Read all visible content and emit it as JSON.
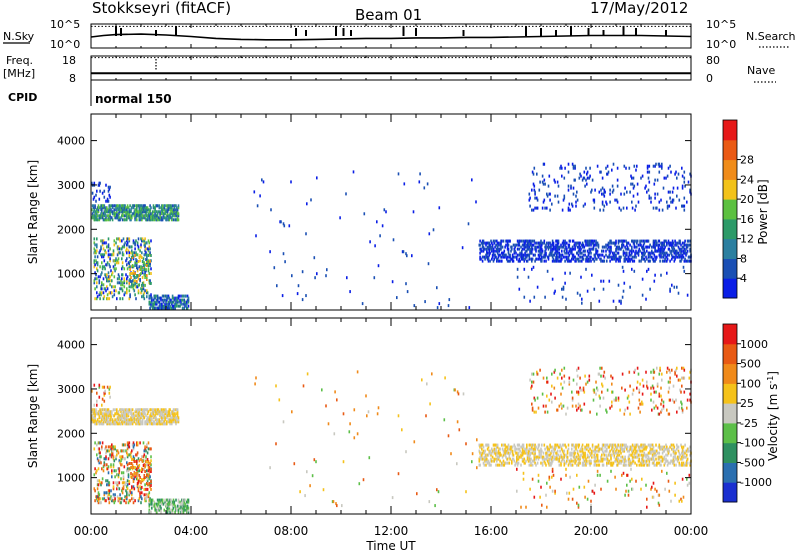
{
  "header": {
    "title": "Stokkseyri (fitACF)",
    "beam": "Beam 01",
    "date": "17/May/2012"
  },
  "chart_data": [
    {
      "type": "line",
      "panel": "noise",
      "labels": {
        "left": "N.Sky",
        "right": "N.Search"
      },
      "left_ticks": [
        "10^5",
        "10^0"
      ],
      "right_ticks": [
        "10^5",
        "10^0"
      ],
      "x_range": [
        0,
        24
      ],
      "series": [
        {
          "name": "N.Sky",
          "style": "solid",
          "x": [
            0.0,
            0.5,
            1.0,
            2.0,
            3.0,
            4.0,
            5.0,
            6.0,
            7.0,
            8.0,
            9.0,
            10.0,
            11.0,
            12.0,
            13.0,
            14.0,
            15.0,
            16.0,
            17.0,
            18.0,
            19.0,
            20.0,
            21.0,
            22.0,
            23.0,
            24.0
          ],
          "y": [
            2.3,
            2.6,
            2.8,
            2.9,
            2.7,
            2.4,
            2.0,
            1.8,
            1.7,
            1.7,
            1.8,
            1.9,
            2.0,
            2.0,
            2.1,
            2.1,
            2.2,
            2.2,
            2.3,
            2.4,
            2.5,
            2.6,
            2.6,
            2.6,
            2.5,
            2.4
          ]
        },
        {
          "name": "N.Search",
          "style": "dotted",
          "x": [
            0,
            24
          ],
          "y": [
            4.5,
            4.5
          ]
        }
      ],
      "spikes_hours": [
        1.0,
        1.2,
        2.6,
        3.4,
        8.2,
        8.6,
        9.8,
        10.1,
        10.4,
        12.5,
        13.0,
        14.9,
        17.4,
        18.0,
        18.6,
        19.2,
        19.9,
        20.5,
        21.3,
        21.8,
        23.0
      ]
    },
    {
      "type": "line",
      "panel": "freq-nave",
      "labels": {
        "left": "Freq.",
        "left_unit": "[MHz]",
        "right": "Nave"
      },
      "left_ticks": [
        "18",
        "8"
      ],
      "right_ticks": [
        "80",
        "0"
      ],
      "x_range": [
        0,
        24
      ],
      "series": [
        {
          "name": "Freq.",
          "style": "solid",
          "x": [
            0,
            24
          ],
          "y": [
            10,
            10
          ]
        },
        {
          "name": "Nave",
          "style": "dotted",
          "x": [
            0,
            24
          ],
          "y": [
            78,
            78
          ]
        }
      ]
    },
    {
      "type": "table",
      "panel": "cpid",
      "label": "CPID",
      "segments": [
        {
          "start_hour": 0,
          "text": "normal 150"
        }
      ]
    },
    {
      "type": "heatmap",
      "panel": "power",
      "ylabel": "Slant Range [km]",
      "y_ticks": [
        1000,
        2000,
        3000,
        4000
      ],
      "ylim": [
        180,
        4600
      ],
      "x_range": [
        0,
        24
      ],
      "colorbar": {
        "label": "Power [dB]",
        "ticks": [
          "4",
          "8",
          "12",
          "16",
          "20",
          "24",
          "28"
        ],
        "colors": [
          "#0a1ee6",
          "#1a4fb4",
          "#2b7fa0",
          "#2c9a68",
          "#5cc040",
          "#f2c21a",
          "#f08c1a",
          "#ea5a14",
          "#e61818"
        ]
      },
      "regions": [
        {
          "t0": 0.0,
          "t1": 3.5,
          "r0": 2180,
          "r1": 2560,
          "dens": 0.55,
          "v0": 1,
          "v1": 4
        },
        {
          "t0": 0.0,
          "t1": 0.8,
          "r0": 2600,
          "r1": 3100,
          "dens": 0.12,
          "v0": 0,
          "v1": 1
        },
        {
          "t0": 0.1,
          "t1": 2.4,
          "r0": 400,
          "r1": 1800,
          "dens": 0.18,
          "v0": 0,
          "v1": 5
        },
        {
          "t0": 2.3,
          "t1": 3.9,
          "r0": 190,
          "r1": 500,
          "dens": 0.45,
          "v0": 0,
          "v1": 3
        },
        {
          "t0": 1.5,
          "t1": 2.4,
          "r0": 700,
          "r1": 1400,
          "dens": 0.15,
          "v0": 1,
          "v1": 6
        },
        {
          "t0": 15.5,
          "t1": 24.0,
          "r0": 1250,
          "r1": 1750,
          "dens": 0.35,
          "v0": 0,
          "v1": 1
        },
        {
          "t0": 17.5,
          "t1": 24.0,
          "r0": 2400,
          "r1": 3500,
          "dens": 0.05,
          "v0": 0,
          "v1": 1
        },
        {
          "t0": 17.0,
          "t1": 24.0,
          "r0": 300,
          "r1": 1200,
          "dens": 0.02,
          "v0": 0,
          "v1": 1
        },
        {
          "t0": 6.5,
          "t1": 15.5,
          "r0": 200,
          "r1": 3400,
          "dens": 0.004,
          "v0": 0,
          "v1": 1
        }
      ]
    },
    {
      "type": "heatmap",
      "panel": "velocity",
      "ylabel": "Slant Range [km]",
      "y_ticks": [
        1000,
        2000,
        3000,
        4000
      ],
      "ylim": [
        180,
        4600
      ],
      "x_range": [
        0,
        24
      ],
      "xlabel": "Time UT",
      "x_tick_labels": [
        "00:00",
        "04:00",
        "08:00",
        "12:00",
        "16:00",
        "20:00",
        "00:00"
      ],
      "colorbar": {
        "label": "Velocity [m s^-1]",
        "ticks": [
          "1000",
          "500",
          "100",
          "25",
          "-25",
          "-100",
          "-500",
          "-1000"
        ],
        "colors": [
          "#1a2fd0",
          "#2a6fb0",
          "#2e9060",
          "#5cbf48",
          "#c8c8c0",
          "#f5c21a",
          "#f08a1a",
          "#e85a14",
          "#e61818"
        ]
      },
      "regions": [
        {
          "t0": 0.0,
          "t1": 3.5,
          "r0": 2180,
          "r1": 2560,
          "dens": 0.55,
          "v0": 4,
          "v1": 5
        },
        {
          "t0": 0.0,
          "t1": 0.8,
          "r0": 2600,
          "r1": 3100,
          "dens": 0.12,
          "v0": 3,
          "v1": 8
        },
        {
          "t0": 0.1,
          "t1": 2.4,
          "r0": 400,
          "r1": 1800,
          "dens": 0.18,
          "v0": 1,
          "v1": 8
        },
        {
          "t0": 2.3,
          "t1": 3.9,
          "r0": 190,
          "r1": 500,
          "dens": 0.45,
          "v0": 2,
          "v1": 4
        },
        {
          "t0": 1.5,
          "t1": 2.4,
          "r0": 700,
          "r1": 1400,
          "dens": 0.15,
          "v0": 5,
          "v1": 8
        },
        {
          "t0": 15.5,
          "t1": 24.0,
          "r0": 1250,
          "r1": 1750,
          "dens": 0.35,
          "v0": 4,
          "v1": 5
        },
        {
          "t0": 17.5,
          "t1": 24.0,
          "r0": 2400,
          "r1": 3500,
          "dens": 0.05,
          "v0": 3,
          "v1": 8
        },
        {
          "t0": 17.0,
          "t1": 24.0,
          "r0": 300,
          "r1": 1200,
          "dens": 0.02,
          "v0": 3,
          "v1": 8
        },
        {
          "t0": 6.5,
          "t1": 15.5,
          "r0": 200,
          "r1": 3400,
          "dens": 0.004,
          "v0": 3,
          "v1": 7
        }
      ]
    }
  ]
}
